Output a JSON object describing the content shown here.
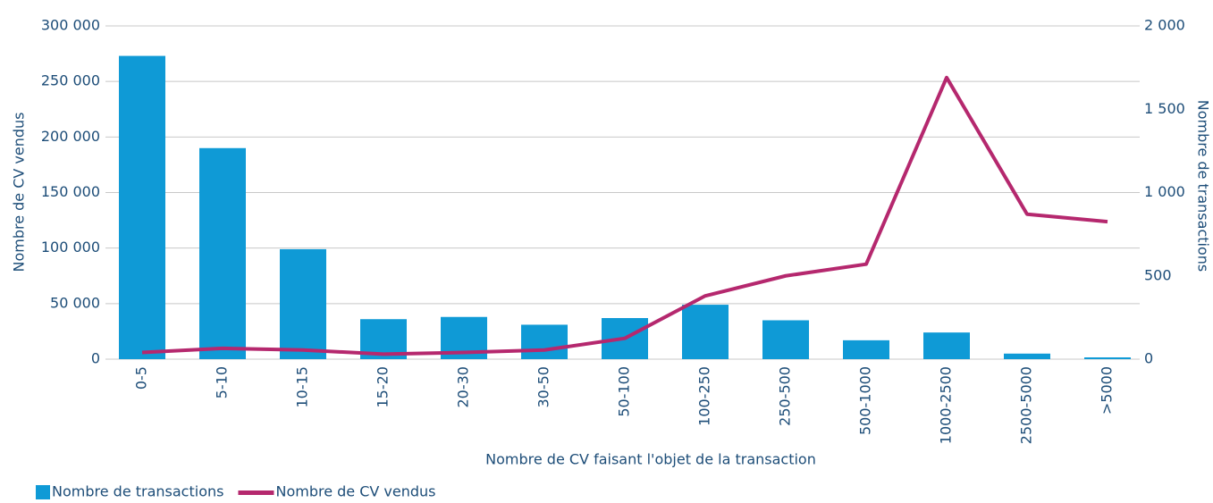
{
  "chart_data": {
    "type": "bar",
    "x_label": "Nombre de CV faisant l'objet de la transaction",
    "y_label": "Nombre de CV vendus",
    "y2_label": "Nombre de transactions",
    "categories": [
      "0-5",
      "5-10",
      "10-15",
      "15-20",
      "20-30",
      "30-50",
      "50-100",
      "100-250",
      "250-500",
      "500-1000",
      "1000-2500",
      "2500-5000",
      ">5000"
    ],
    "series": [
      {
        "name": "Nombre de transactions",
        "type": "bar",
        "color": "#0f9ad6",
        "values": [
          273000,
          190000,
          99000,
          36000,
          38000,
          31000,
          37000,
          49000,
          35000,
          17000,
          24000,
          5000,
          1600
        ]
      },
      {
        "name": "Nombre de CV vendus",
        "type": "line",
        "axis": "y2",
        "color": "#b5286e",
        "values": [
          40,
          65,
          55,
          30,
          40,
          55,
          125,
          380,
          500,
          570,
          1690,
          870,
          825
        ]
      }
    ],
    "ylim": [
      0,
      300000
    ],
    "yticks": [
      0,
      {
        "value": 50000,
        "label": "50 000"
      },
      {
        "value": 100000,
        "label": "100 000"
      },
      {
        "value": 150000,
        "label": "150 000"
      },
      {
        "value": 200000,
        "label": "200 000"
      },
      {
        "value": 250000,
        "label": "250 000"
      },
      {
        "value": 300000,
        "label": "300 000"
      }
    ],
    "y2lim": [
      0,
      2000
    ],
    "y2ticks": [
      0,
      500,
      {
        "value": 1000,
        "label": "1 000"
      },
      {
        "value": 1500,
        "label": "1 500"
      },
      {
        "value": 2000,
        "label": "2 000"
      }
    ],
    "grid": true,
    "legend": "bottom-left"
  }
}
